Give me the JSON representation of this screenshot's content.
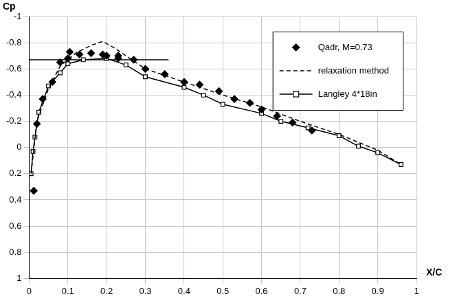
{
  "chart_data": {
    "type": "line",
    "x_label": "X/C",
    "y_label": "Cp",
    "xlim": [
      0,
      1
    ],
    "xticks": [
      0,
      0.1,
      0.2,
      0.3,
      0.4,
      0.5,
      0.6,
      0.7,
      0.8,
      0.9,
      1
    ],
    "ylim": [
      1,
      -1
    ],
    "yticks": [
      -1,
      -0.8,
      -0.6,
      -0.4,
      -0.2,
      0,
      0.2,
      0.4,
      0.6,
      0.8,
      1
    ],
    "grid": true,
    "legend": "upper right",
    "series": [
      {
        "name": "Qadr, M=0.73",
        "type": "scatter",
        "color": "#000000",
        "marker": "diamond",
        "x": [
          0.012,
          0.02,
          0.035,
          0.06,
          0.08,
          0.1,
          0.105,
          0.13,
          0.16,
          0.19,
          0.2,
          0.23,
          0.23,
          0.27,
          0.3,
          0.35,
          0.4,
          0.44,
          0.49,
          0.53,
          0.57,
          0.6,
          0.64,
          0.68,
          0.73
        ],
        "values": [
          0.33,
          -0.18,
          -0.37,
          -0.5,
          -0.65,
          -0.68,
          -0.73,
          -0.71,
          -0.72,
          -0.71,
          -0.7,
          -0.7,
          -0.68,
          -0.67,
          -0.6,
          -0.56,
          -0.5,
          -0.48,
          -0.43,
          -0.37,
          -0.34,
          -0.29,
          -0.24,
          -0.19,
          -0.13
        ]
      },
      {
        "name": "relaxation method",
        "type": "line",
        "color": "#000000",
        "line_style": "dashed",
        "x": [
          0.005,
          0.02,
          0.05,
          0.08,
          0.12,
          0.16,
          0.19,
          0.22,
          0.26,
          0.3,
          0.4,
          0.5,
          0.6,
          0.7,
          0.8,
          0.9,
          0.96
        ],
        "values": [
          0.2,
          -0.2,
          -0.45,
          -0.62,
          -0.72,
          -0.78,
          -0.81,
          -0.76,
          -0.68,
          -0.6,
          -0.5,
          -0.4,
          -0.31,
          -0.2,
          -0.1,
          0.02,
          0.13
        ]
      },
      {
        "name": "Langley 4*18in",
        "type": "line",
        "color": "#000000",
        "line_style": "solid",
        "marker": "square",
        "x": [
          0.005,
          0.01,
          0.015,
          0.025,
          0.05,
          0.08,
          0.1,
          0.14,
          0.2,
          0.25,
          0.3,
          0.4,
          0.45,
          0.5,
          0.6,
          0.65,
          0.72,
          0.8,
          0.85,
          0.9,
          0.96
        ],
        "values": [
          0.2,
          0.03,
          -0.08,
          -0.27,
          -0.47,
          -0.57,
          -0.64,
          -0.67,
          -0.68,
          -0.63,
          -0.54,
          -0.46,
          -0.4,
          -0.33,
          -0.26,
          -0.2,
          -0.15,
          -0.09,
          -0.01,
          0.04,
          0.13
        ]
      },
      {
        "type": "line",
        "color": "#000000",
        "line_style": "solid",
        "x": [
          0,
          0.36
        ],
        "values": [
          -0.67,
          -0.67
        ]
      }
    ]
  }
}
